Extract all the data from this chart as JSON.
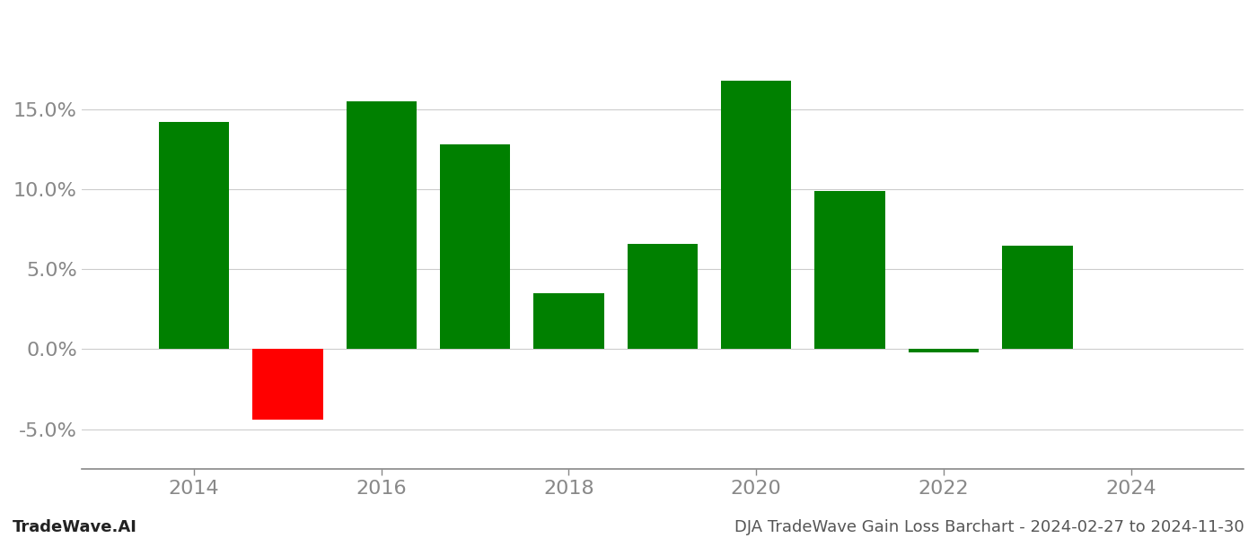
{
  "years": [
    2014,
    2015,
    2016,
    2017,
    2018,
    2019,
    2020,
    2021,
    2022,
    2023
  ],
  "values": [
    0.142,
    -0.044,
    0.155,
    0.128,
    0.035,
    0.066,
    0.168,
    0.099,
    -0.002,
    0.065
  ],
  "bar_colors": [
    "#008000",
    "#ff0000",
    "#008000",
    "#008000",
    "#008000",
    "#008000",
    "#008000",
    "#008000",
    "#008000",
    "#008000"
  ],
  "ylim": [
    -0.075,
    0.21
  ],
  "yticks": [
    -0.05,
    0.0,
    0.05,
    0.1,
    0.15
  ],
  "xticks": [
    2014,
    2016,
    2018,
    2020,
    2022,
    2024
  ],
  "xlim": [
    2012.8,
    2025.2
  ],
  "grid_color": "#cccccc",
  "axis_color": "#888888",
  "tick_color": "#888888",
  "background_color": "#ffffff",
  "footer_left": "TradeWave.AI",
  "footer_right": "DJA TradeWave Gain Loss Barchart - 2024-02-27 to 2024-11-30",
  "footer_fontsize": 13,
  "tick_fontsize": 16,
  "bar_width": 0.75
}
